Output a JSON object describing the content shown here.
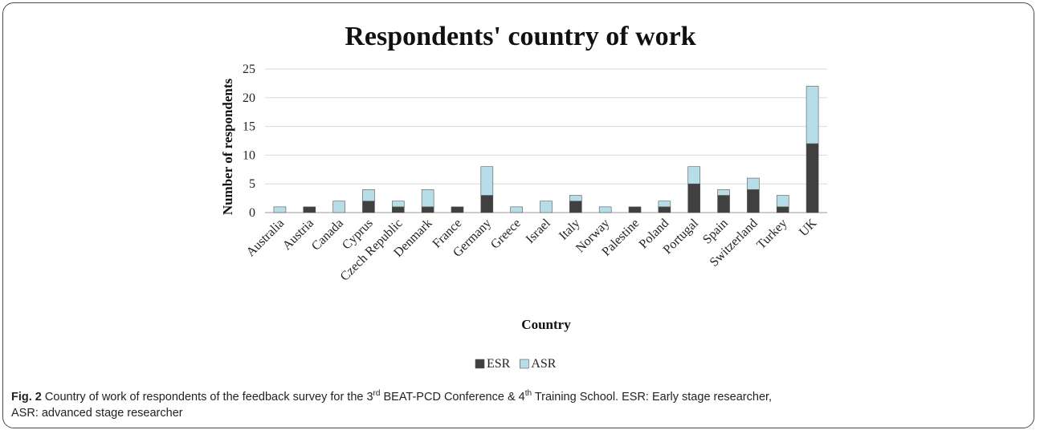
{
  "chart_data": {
    "type": "bar",
    "stacked": true,
    "title": "Respondents' country of work",
    "xlabel": "Country",
    "ylabel": "Number of respondents",
    "ylim": [
      0,
      25
    ],
    "yticks": [
      0,
      5,
      10,
      15,
      20,
      25
    ],
    "grid": true,
    "legend_position": "bottom",
    "categories": [
      "Australia",
      "Austria",
      "Canada",
      "Cyprus",
      "Czech Republic",
      "Denmark",
      "France",
      "Germany",
      "Greece",
      "Israel",
      "Italy",
      "Norway",
      "Palestine",
      "Poland",
      "Portugal",
      "Spain",
      "Switzerland",
      "Turkey",
      "UK"
    ],
    "series": [
      {
        "name": "ESR",
        "color": "#404040",
        "values": [
          0,
          1,
          0,
          2,
          1,
          1,
          1,
          3,
          0,
          0,
          2,
          0,
          1,
          1,
          5,
          3,
          4,
          1,
          12
        ]
      },
      {
        "name": "ASR",
        "color": "#b7dde8",
        "values": [
          1,
          0,
          2,
          2,
          1,
          3,
          0,
          5,
          1,
          2,
          1,
          1,
          0,
          1,
          3,
          1,
          2,
          2,
          10
        ]
      }
    ]
  },
  "caption": {
    "fig_label": "Fig. 2",
    "text_1": " Country of work of respondents of the feedback survey for the 3",
    "sup_1": "rd",
    "text_2": " BEAT-PCD Conference & 4",
    "sup_2": "th",
    "text_3": " Training School. ESR: Early stage researcher,",
    "text_4": "ASR: advanced stage researcher"
  }
}
